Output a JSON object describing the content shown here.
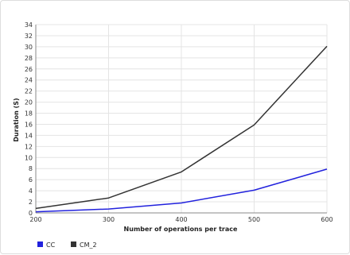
{
  "chart_data": {
    "type": "line",
    "xlabel": "Number of operations per trace",
    "ylabel": "Duration (S)",
    "x": [
      200,
      300,
      400,
      500,
      600
    ],
    "xlim": [
      200,
      600
    ],
    "ylim": [
      0,
      34
    ],
    "y_ticks": [
      0,
      2,
      4,
      6,
      8,
      10,
      12,
      14,
      16,
      18,
      20,
      22,
      24,
      26,
      28,
      30,
      32,
      34
    ],
    "grid": true,
    "legend_placement": "bottom-left",
    "series": [
      {
        "name": "CC",
        "color": "#2222dd",
        "values": [
          0.2,
          0.7,
          1.8,
          4.1,
          7.9
        ]
      },
      {
        "name": "CM_2",
        "color": "#333333",
        "values": [
          0.8,
          2.7,
          7.4,
          15.9,
          30.1
        ]
      }
    ]
  }
}
